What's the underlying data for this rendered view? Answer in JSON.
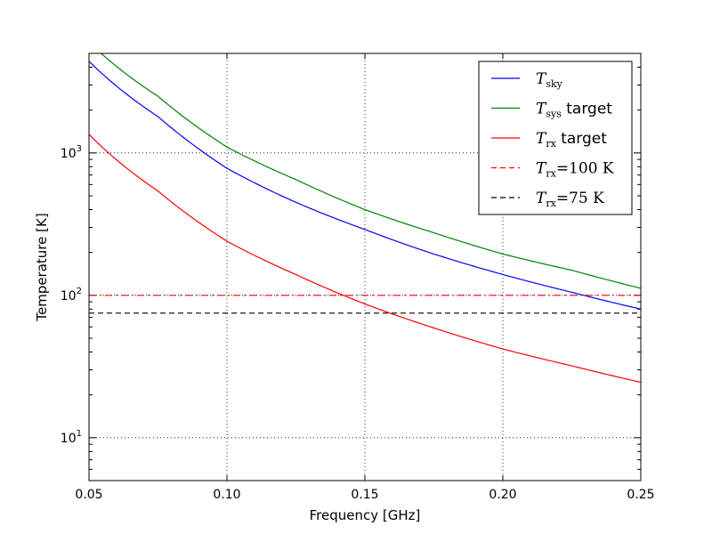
{
  "chart_data": {
    "type": "line",
    "xlabel": "Frequency [GHz]",
    "ylabel": "Temperature [K]",
    "xlim": [
      0.05,
      0.25
    ],
    "ylim": [
      5,
      5000
    ],
    "yscale": "log",
    "grid": true,
    "legend_position": "top-right",
    "x_ticks": [
      "0.05",
      "0.10",
      "0.15",
      "0.20",
      "0.25"
    ],
    "y_ticks": [
      {
        "base": "10",
        "exp": "1",
        "value": 10
      },
      {
        "base": "10",
        "exp": "2",
        "value": 100
      },
      {
        "base": "10",
        "exp": "3",
        "value": 1000
      }
    ],
    "series": [
      {
        "key": "tsky",
        "legend": {
          "sym": "T",
          "sub": "sky",
          "suffix": ""
        },
        "color": "#0000ff",
        "style": "solid",
        "x": [
          0.05,
          0.075,
          0.1,
          0.125,
          0.15,
          0.175,
          0.2,
          0.225,
          0.25
        ],
        "y": [
          4400,
          1800,
          780,
          450,
          290,
          195,
          140,
          105,
          80
        ]
      },
      {
        "key": "tsys",
        "legend": {
          "sym": "T",
          "sub": "sys",
          "suffix": " target"
        },
        "color": "#008000",
        "style": "solid",
        "x": [
          0.05,
          0.075,
          0.1,
          0.125,
          0.15,
          0.175,
          0.2,
          0.225,
          0.25
        ],
        "y": [
          6000,
          2500,
          1100,
          650,
          400,
          275,
          195,
          150,
          112
        ]
      },
      {
        "key": "trx",
        "legend": {
          "sym": "T",
          "sub": "rx",
          "suffix": " target"
        },
        "color": "#ff0000",
        "style": "solid",
        "x": [
          0.05,
          0.075,
          0.1,
          0.125,
          0.15,
          0.175,
          0.2,
          0.225,
          0.25
        ],
        "y": [
          1350,
          540,
          240,
          140,
          87,
          59,
          42,
          32,
          24.5
        ]
      },
      {
        "key": "trx100",
        "legend": {
          "sym": "T",
          "sub": "rx",
          "suffix": "=100 K"
        },
        "color": "#ff0000",
        "style": "dashdot",
        "x": [
          0.05,
          0.25
        ],
        "y": [
          100,
          100
        ]
      },
      {
        "key": "trx75",
        "legend": {
          "sym": "T",
          "sub": "rx",
          "suffix": "=75 K"
        },
        "color": "#000000",
        "style": "dashed",
        "x": [
          0.05,
          0.25
        ],
        "y": [
          75,
          75
        ]
      }
    ]
  }
}
